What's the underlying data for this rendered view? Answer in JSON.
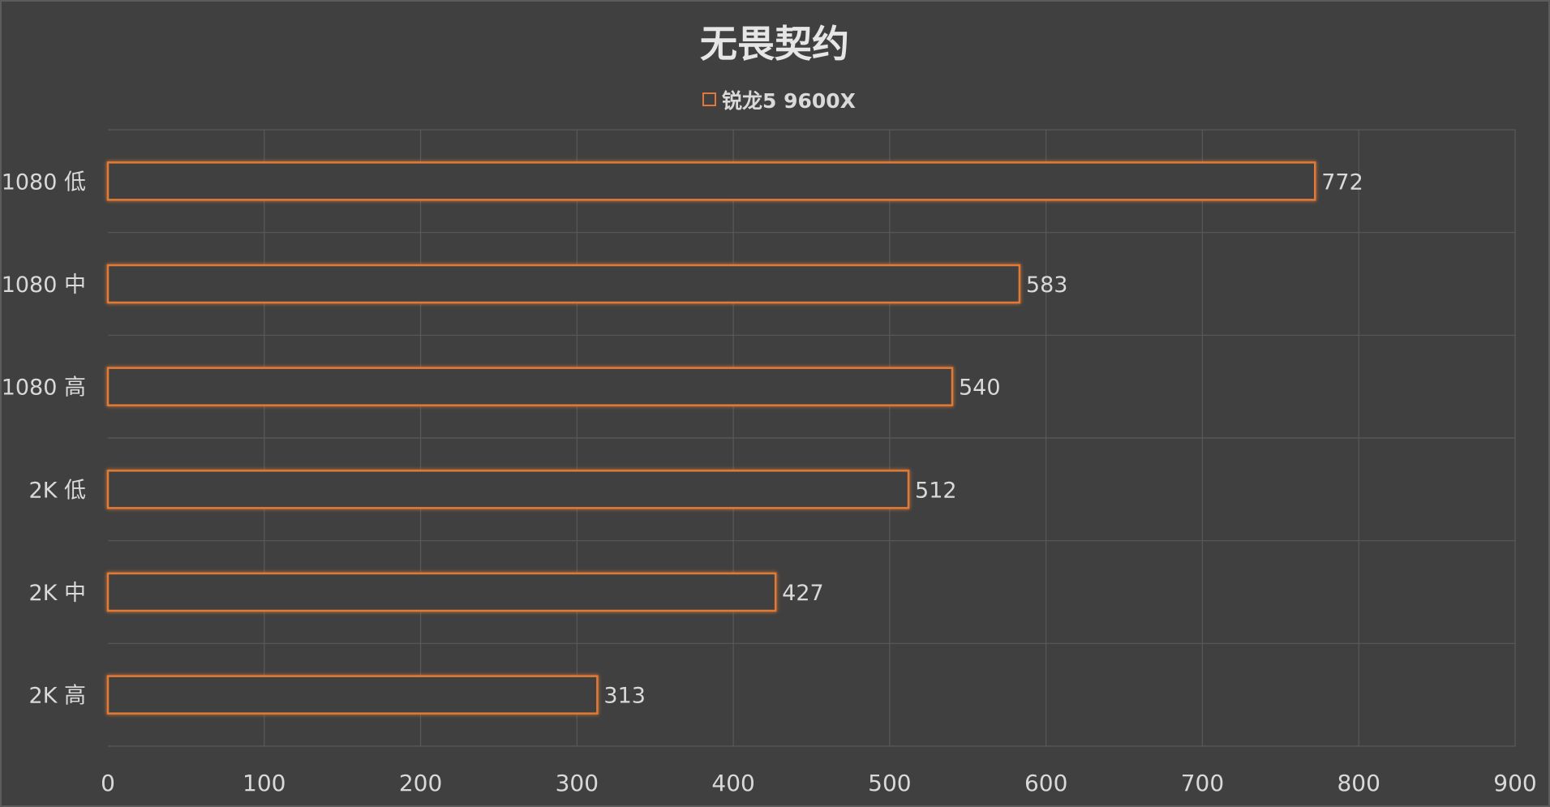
{
  "chart_data": {
    "type": "bar",
    "orientation": "horizontal",
    "title": "无畏契约",
    "legend": {
      "position": "top",
      "entries": [
        "锐龙5 9600X"
      ]
    },
    "categories": [
      "1080 低",
      "1080 中",
      "1080 高",
      "2K 低",
      "2K 中",
      "2K 高"
    ],
    "series": [
      {
        "name": "锐龙5 9600X",
        "values": [
          772,
          583,
          540,
          512,
          427,
          313
        ]
      }
    ],
    "xlim": [
      0,
      900
    ],
    "xticks": [
      0,
      100,
      200,
      300,
      400,
      500,
      600,
      700,
      800,
      900
    ],
    "grid": true,
    "colors": {
      "bar_outline": "#e07a35",
      "background": "#404040",
      "grid": "#595959",
      "text": "#d9d9d9"
    }
  }
}
